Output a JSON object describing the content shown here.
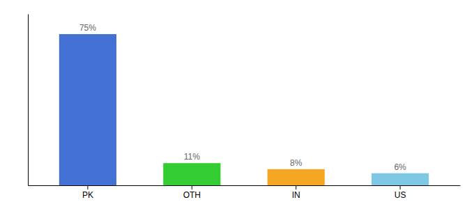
{
  "chart_data": {
    "type": "bar",
    "categories": [
      "PK",
      "OTH",
      "IN",
      "US"
    ],
    "values": [
      75,
      11,
      8,
      6
    ],
    "value_labels": [
      "75%",
      "11%",
      "8%",
      "6%"
    ],
    "data_labels": true,
    "colors": [
      "#4472d4",
      "#33cc33",
      "#f5a623",
      "#7ec8e3"
    ],
    "ylim": [
      0,
      85
    ],
    "tick_labels": "x"
  }
}
